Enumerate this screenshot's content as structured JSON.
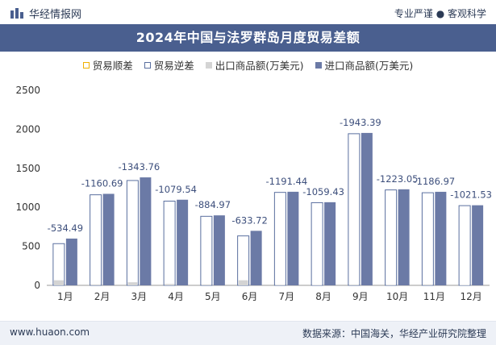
{
  "header": {
    "brand": "华经情报网",
    "slogan": "专业严谨 ● 客观科学"
  },
  "footer": {
    "url": "www.huaon.com",
    "source": "数据来源：中国海关，华经产业研究院整理"
  },
  "colors": {
    "title_bar": "#4a5f8f",
    "import_bar": "#6b7aa6",
    "export_bar": "#d4d4d4",
    "deficit_bar_border": "#5a6f9f",
    "surplus_border": "#f0b000"
  },
  "chart_data": {
    "type": "bar",
    "title": "2024年中国与法罗群岛月度贸易差额",
    "categories": [
      "1月",
      "2月",
      "3月",
      "4月",
      "5月",
      "6月",
      "7月",
      "8月",
      "9月",
      "10月",
      "11月",
      "12月"
    ],
    "series": [
      {
        "name": "贸易顺差",
        "values": [
          0,
          0,
          0,
          0,
          0,
          0,
          0,
          0,
          0,
          0,
          0,
          0
        ]
      },
      {
        "name": "贸易逆差",
        "values": [
          -534.49,
          -1160.69,
          -1343.76,
          -1079.54,
          -884.97,
          -633.72,
          -1191.44,
          -1059.43,
          -1943.39,
          -1223.05,
          -1186.97,
          -1021.53
        ]
      },
      {
        "name": "出口商品额(万美元)",
        "values": [
          65,
          12,
          40,
          18,
          12,
          65,
          8,
          6,
          10,
          8,
          12,
          5
        ]
      },
      {
        "name": "进口商品额(万美元)",
        "values": [
          599.49,
          1172.69,
          1383.76,
          1097.54,
          896.97,
          698.72,
          1199.44,
          1065.43,
          1953.39,
          1231.05,
          1198.97,
          1026.53
        ]
      }
    ],
    "data_labels": [
      "-534.49",
      "-1160.69",
      "-1343.76",
      "-1079.54",
      "-884.97",
      "-633.72",
      "-1191.44",
      "-1059.43",
      "-1943.39",
      "-1223.05",
      "-1186.97",
      "-1021.53"
    ],
    "ylim": [
      0,
      2500
    ],
    "yticks": [
      0,
      500,
      1000,
      1500,
      2000,
      2500
    ],
    "legend_position": "top",
    "grid": false
  }
}
